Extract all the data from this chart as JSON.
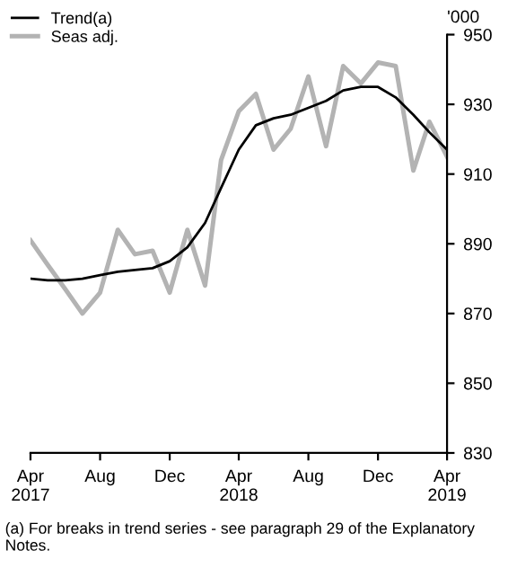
{
  "chart_data": {
    "type": "line",
    "ylabel": "'000",
    "x": [
      "2017-04",
      "2017-05",
      "2017-06",
      "2017-07",
      "2017-08",
      "2017-09",
      "2017-10",
      "2017-11",
      "2017-12",
      "2018-01",
      "2018-02",
      "2018-03",
      "2018-04",
      "2018-05",
      "2018-06",
      "2018-07",
      "2018-08",
      "2018-09",
      "2018-10",
      "2018-11",
      "2018-12",
      "2019-01",
      "2019-02",
      "2019-03",
      "2019-04"
    ],
    "series": [
      {
        "name": "Trend(a)",
        "color": "#000000",
        "values": [
          880,
          879.5,
          879.5,
          880,
          881,
          882,
          882.5,
          883,
          885,
          889,
          896,
          906,
          917,
          924,
          926,
          927,
          929,
          931,
          934,
          935,
          935,
          932,
          927,
          922,
          917
        ]
      },
      {
        "name": "Seas adj.",
        "color": "#b3b3b3",
        "values": [
          891,
          884,
          877,
          870,
          876,
          894,
          887,
          888,
          876,
          894,
          878,
          914,
          928,
          933,
          917,
          923,
          938,
          918,
          941,
          936,
          942,
          941,
          911,
          925,
          915
        ]
      }
    ],
    "xlim": [
      "2017-04",
      "2019-04"
    ],
    "xticks": [
      {
        "value": "2017-04",
        "label": "Apr\n2017"
      },
      {
        "value": "2017-08",
        "label": "Aug"
      },
      {
        "value": "2017-12",
        "label": "Dec"
      },
      {
        "value": "2018-04",
        "label": "Apr\n2018"
      },
      {
        "value": "2018-08",
        "label": "Aug"
      },
      {
        "value": "2018-12",
        "label": "Dec"
      },
      {
        "value": "2019-04",
        "label": "Apr\n2019"
      }
    ],
    "ylim": [
      830,
      950
    ],
    "yticks": [
      830,
      850,
      870,
      890,
      910,
      930,
      950
    ],
    "legend": "top left",
    "grid": false,
    "annotations": [
      "(a) For breaks in trend series - see paragraph 29 of the Explanatory Notes."
    ]
  }
}
